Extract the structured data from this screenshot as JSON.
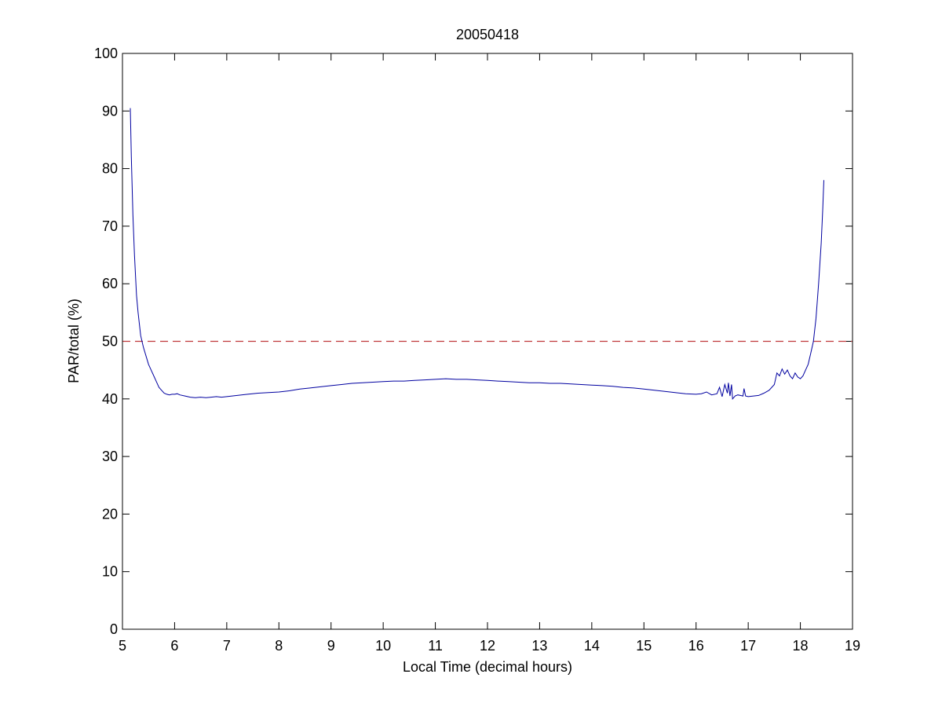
{
  "chart_data": {
    "type": "line",
    "title": "20050418",
    "xlabel": "Local Time (decimal hours)",
    "ylabel": "PAR/total (%)",
    "xlim": [
      5,
      19
    ],
    "ylim": [
      0,
      100
    ],
    "xticks": [
      "5",
      "6",
      "7",
      "8",
      "9",
      "10",
      "11",
      "12",
      "13",
      "14",
      "15",
      "16",
      "17",
      "18",
      "19"
    ],
    "yticks": [
      "0",
      "10",
      "20",
      "30",
      "40",
      "50",
      "60",
      "70",
      "80",
      "90",
      "100"
    ],
    "grid": false,
    "legend": null,
    "reference_line": {
      "y": 50,
      "style": "dashed",
      "color": "#c0393b"
    },
    "series": [
      {
        "color": "#0000a0",
        "x": [
          5.15,
          5.17,
          5.2,
          5.23,
          5.27,
          5.3,
          5.35,
          5.4,
          5.45,
          5.5,
          5.55,
          5.6,
          5.65,
          5.7,
          5.75,
          5.8,
          5.85,
          5.9,
          5.95,
          6.0,
          6.05,
          6.1,
          6.2,
          6.3,
          6.4,
          6.5,
          6.6,
          6.7,
          6.8,
          6.9,
          7.0,
          7.2,
          7.4,
          7.6,
          7.8,
          8.0,
          8.2,
          8.4,
          8.6,
          8.8,
          9.0,
          9.2,
          9.4,
          9.6,
          9.8,
          10.0,
          10.2,
          10.4,
          10.6,
          10.8,
          11.0,
          11.2,
          11.4,
          11.6,
          11.8,
          12.0,
          12.2,
          12.4,
          12.6,
          12.8,
          13.0,
          13.2,
          13.4,
          13.6,
          13.8,
          14.0,
          14.2,
          14.4,
          14.6,
          14.8,
          15.0,
          15.2,
          15.4,
          15.6,
          15.8,
          16.0,
          16.1,
          16.2,
          16.3,
          16.4,
          16.45,
          16.5,
          16.55,
          16.6,
          16.62,
          16.65,
          16.68,
          16.7,
          16.75,
          16.8,
          16.85,
          16.9,
          16.92,
          16.95,
          17.0,
          17.1,
          17.2,
          17.3,
          17.4,
          17.5,
          17.55,
          17.6,
          17.65,
          17.7,
          17.75,
          17.8,
          17.85,
          17.9,
          17.95,
          18.0,
          18.05,
          18.1,
          18.15,
          18.2,
          18.25,
          18.3,
          18.35,
          18.4,
          18.43,
          18.45
        ],
        "y": [
          90.5,
          82,
          72,
          65,
          58,
          55,
          51,
          49,
          47.5,
          46,
          45,
          44,
          43,
          42,
          41.5,
          41,
          40.8,
          40.7,
          40.8,
          40.8,
          40.9,
          40.7,
          40.5,
          40.3,
          40.2,
          40.3,
          40.2,
          40.3,
          40.4,
          40.3,
          40.4,
          40.6,
          40.8,
          41.0,
          41.1,
          41.2,
          41.4,
          41.7,
          41.9,
          42.1,
          42.3,
          42.5,
          42.7,
          42.8,
          42.9,
          43.0,
          43.1,
          43.1,
          43.2,
          43.3,
          43.4,
          43.5,
          43.4,
          43.4,
          43.3,
          43.2,
          43.1,
          43.0,
          42.9,
          42.8,
          42.8,
          42.7,
          42.7,
          42.6,
          42.5,
          42.4,
          42.3,
          42.2,
          42.0,
          41.9,
          41.7,
          41.5,
          41.3,
          41.1,
          40.9,
          40.8,
          40.9,
          41.2,
          40.7,
          40.9,
          42.0,
          40.4,
          42.5,
          41.0,
          42.8,
          40.5,
          42.5,
          40.0,
          40.5,
          40.7,
          40.6,
          40.5,
          41.8,
          40.5,
          40.4,
          40.5,
          40.6,
          41.0,
          41.5,
          42.5,
          44.5,
          44.0,
          45.2,
          44.3,
          45.0,
          44.0,
          43.5,
          44.5,
          43.8,
          43.5,
          44.0,
          45.0,
          46.0,
          48.0,
          50.0,
          54.0,
          60.0,
          67.0,
          73.0,
          78.0
        ]
      }
    ]
  }
}
